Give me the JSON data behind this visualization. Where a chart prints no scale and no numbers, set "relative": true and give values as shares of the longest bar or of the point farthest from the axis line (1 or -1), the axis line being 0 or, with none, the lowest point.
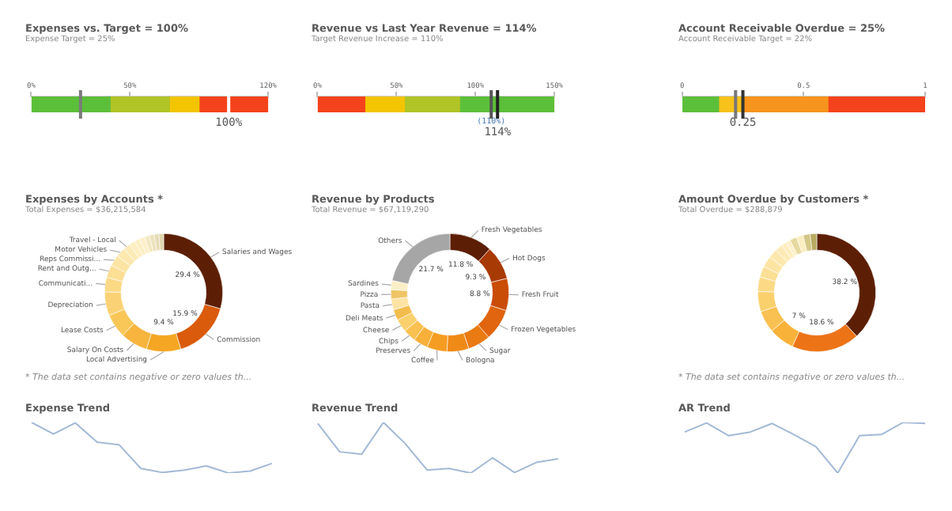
{
  "chart_data": [
    {
      "type": "bar",
      "title": "Expenses vs. Target = 100%",
      "subtitle": "Expense Target = 25%",
      "orientation": "horizontal",
      "stacked": true,
      "categories": [
        null
      ],
      "series": [
        {
          "color": "#5cbf3a",
          "values": [
            40
          ]
        },
        {
          "color": "#b0c426",
          "values": [
            30
          ]
        },
        {
          "color": "#f2c500",
          "values": [
            15
          ]
        },
        {
          "color": "#f4431c",
          "values": [
            35
          ]
        }
      ],
      "xlim": [
        0,
        120
      ],
      "xticks": [
        {
          "value": 0,
          "label": "0%"
        },
        {
          "value": 50,
          "label": "50%"
        },
        {
          "value": 120,
          "label": "120%"
        }
      ],
      "ref_lines": [
        {
          "axis": "x",
          "value": 25,
          "label": null,
          "color": "#7a7a7a"
        },
        {
          "axis": "x",
          "value": 100,
          "label": "100%",
          "color": "#ffffff"
        }
      ]
    },
    {
      "type": "bar",
      "title": "Revenue vs Last Year Revenue = 114%",
      "subtitle": "Target Revenue Increase = 110%",
      "orientation": "horizontal",
      "stacked": true,
      "categories": [
        null
      ],
      "series": [
        {
          "color": "#f4431c",
          "values": [
            30
          ]
        },
        {
          "color": "#f2c500",
          "values": [
            25
          ]
        },
        {
          "color": "#b0c426",
          "values": [
            35
          ]
        },
        {
          "color": "#5cbf3a",
          "values": [
            60
          ]
        }
      ],
      "xlim": [
        0,
        150
      ],
      "xticks": [
        {
          "value": 0,
          "label": "0%"
        },
        {
          "value": 50,
          "label": "50%"
        },
        {
          "value": 100,
          "label": "100%"
        },
        {
          "value": 150,
          "label": "150%"
        }
      ],
      "ref_lines": [
        {
          "axis": "x",
          "value": 110,
          "label": "(110%)",
          "color": "#555555"
        },
        {
          "axis": "x",
          "value": 114,
          "label": "114%",
          "color": "#222222"
        }
      ]
    },
    {
      "type": "bar",
      "title": "Account Receivable Overdue = 25%",
      "subtitle": "Account Receivable Target = 22%",
      "orientation": "horizontal",
      "stacked": true,
      "categories": [
        null
      ],
      "series": [
        {
          "color": "#5cbf3a",
          "values": [
            0.15
          ]
        },
        {
          "color": "#f7c21a",
          "values": [
            0.1
          ]
        },
        {
          "color": "#f7941d",
          "values": [
            0.35
          ]
        },
        {
          "color": "#f4431c",
          "values": [
            0.4
          ]
        }
      ],
      "xlim": [
        0,
        1
      ],
      "xticks": [
        0,
        0.5,
        1
      ],
      "ref_lines": [
        {
          "axis": "x",
          "value": 0.22,
          "label": null,
          "color": "#777777"
        },
        {
          "axis": "x",
          "value": 0.25,
          "label": "0.25",
          "color": "#333333"
        }
      ]
    },
    {
      "type": "donut",
      "title": "Expenses by Accounts *",
      "subtitle": "Total Expenses = $36,215,584",
      "categories": [
        "Salaries and Wages",
        "Commission",
        "Local Advertising",
        "Salary On Costs",
        "Lease Costs",
        "Depreciation",
        "Communicati...",
        "Rent and Outg...",
        "Reps Commissi...",
        "Motor Vehicles",
        "Travel - Local",
        null,
        null,
        null,
        null,
        null,
        null,
        null
      ],
      "values": [
        29.4,
        15.9,
        9.4,
        7.5,
        6.5,
        6.5,
        4,
        3.5,
        3,
        2.5,
        2,
        1.6,
        1.5,
        1.4,
        1.4,
        1.3,
        1.3,
        1.3
      ],
      "colors": [
        "#5c1f05",
        "#d95b0b",
        "#f5a623",
        "#f7b53e",
        "#f9c658",
        "#fad275",
        "#fbd985",
        "#fbdf95",
        "#fce4a3",
        "#fce8ae",
        "#fcebb7",
        "#fdeebf",
        "#fdefc4",
        "#fdf0c8",
        "#f3e8c2",
        "#ece2bc",
        "#e6dcb5",
        "#e0d6ae"
      ],
      "value_labels": [
        "29.4 %",
        "15.9 %",
        "9.4 %",
        null,
        null,
        null,
        null,
        null,
        null,
        null,
        null,
        null,
        null,
        null,
        null,
        null,
        null,
        null
      ],
      "annotations": [
        "* The data set contains negative or zero values th..."
      ]
    },
    {
      "type": "donut",
      "title": "Revenue by Products",
      "subtitle": "Total Revenue = $67,119,290",
      "categories": [
        "Fresh Vegetables",
        "Hot Dogs",
        "Fresh Fruit",
        "Frozen Vegetables",
        "Sugar",
        "Bologna",
        "Coffee",
        "Preserves",
        "Chips",
        "Cheese",
        "Deli Meats",
        "Pasta",
        "Pizza",
        "Sardines",
        "Others"
      ],
      "values": [
        11.8,
        9.3,
        8.8,
        8.7,
        6.2,
        6,
        5.5,
        4,
        3.5,
        3.5,
        3,
        3,
        2.5,
        2.5,
        21.7
      ],
      "colors": [
        "#5c1f05",
        "#a83a05",
        "#c94c07",
        "#e0650e",
        "#ea7a12",
        "#f08a17",
        "#f59d22",
        "#f8b03a",
        "#f9c152",
        "#fad06d",
        "#f3bd4e",
        "#fde4a4",
        "#efc566",
        "#fcefc7",
        "#a6a6a6"
      ],
      "value_labels": [
        "11.8 %",
        "9.3 %",
        "8.8 %",
        null,
        null,
        null,
        null,
        null,
        null,
        null,
        null,
        null,
        null,
        null,
        "21.7 %"
      ]
    },
    {
      "type": "donut",
      "title": "Amount Overdue by Customers *",
      "subtitle": "Total Overdue = $288,879",
      "categories": [
        null,
        null,
        null,
        null,
        null,
        null,
        null,
        null,
        null,
        null,
        null,
        null,
        null,
        null,
        null,
        null
      ],
      "values": [
        38.2,
        18.6,
        7,
        6,
        5.5,
        4,
        3,
        3,
        2.5,
        2,
        1.5,
        1.2,
        1.9,
        1.9,
        1.9,
        1.8
      ],
      "colors": [
        "#5c1f05",
        "#ec7417",
        "#f8b23a",
        "#f9c152",
        "#fad06d",
        "#fbd985",
        "#fbdf95",
        "#fce4a3",
        "#fce8ae",
        "#fcebb7",
        "#fdeebf",
        "#fdf0c8",
        "#e6d9a0",
        "#fbeec0",
        "#d4c786",
        "#b8ab60"
      ],
      "value_labels": [
        "38.2 %",
        "18.6 %",
        "7 %",
        null,
        null,
        null,
        null,
        null,
        null,
        null,
        null,
        null,
        null,
        null,
        null,
        null
      ],
      "annotations": [
        "* The data set contains negative or zero values th..."
      ]
    },
    {
      "type": "line",
      "title": "Expense Trend",
      "relative": true,
      "categories": [
        null,
        null,
        null,
        null,
        null,
        null,
        null,
        null,
        null,
        null,
        null,
        null
      ],
      "series": [
        {
          "color": "#a3b9d5",
          "values": [
            1,
            0.77,
            0.99,
            0.61,
            0.56,
            0.09,
            0.01,
            0.06,
            0.14,
            0,
            0.04,
            0.19
          ]
        }
      ]
    },
    {
      "type": "line",
      "title": "Revenue Trend",
      "relative": true,
      "categories": [
        null,
        null,
        null,
        null,
        null,
        null,
        null,
        null,
        null,
        null,
        null,
        null
      ],
      "series": [
        {
          "color": "#a3b9d5",
          "values": [
            0.98,
            0.42,
            0.37,
            1,
            0.58,
            0.06,
            0.09,
            0,
            0.3,
            0.01,
            0.21,
            0.28
          ]
        }
      ]
    },
    {
      "type": "line",
      "title": "AR Trend",
      "relative": true,
      "categories": [
        null,
        null,
        null,
        null,
        null,
        null,
        null,
        null,
        null,
        null,
        null,
        null
      ],
      "series": [
        {
          "color": "#a3b9d5",
          "values": [
            0.81,
            0.99,
            0.74,
            0.81,
            0.98,
            0.76,
            0.52,
            0,
            0.74,
            0.76,
            1,
            0.98
          ]
        }
      ]
    }
  ]
}
